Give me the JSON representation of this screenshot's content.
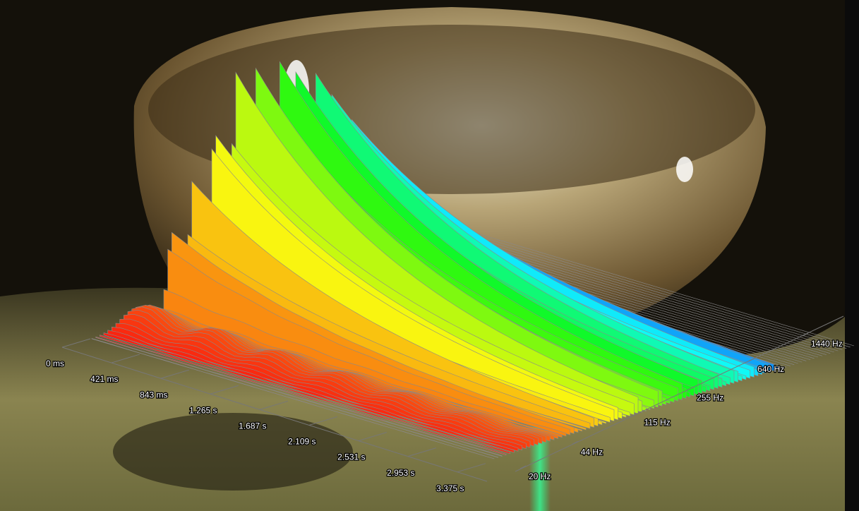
{
  "chart_data": {
    "type": "surface",
    "xticks": [
      {
        "value": 0,
        "label": "0 ms"
      },
      {
        "value": 0.421,
        "label": "421 ms"
      },
      {
        "value": 0.843,
        "label": "843 ms"
      },
      {
        "value": 1.265,
        "label": "1.265 s"
      },
      {
        "value": 1.687,
        "label": "1.687 s"
      },
      {
        "value": 2.109,
        "label": "2.109 s"
      },
      {
        "value": 2.531,
        "label": "2.531 s"
      },
      {
        "value": 2.953,
        "label": "2.953 s"
      },
      {
        "value": 3.375,
        "label": "3.375 s"
      }
    ],
    "xlim": [
      0,
      3.375
    ],
    "yticks": [
      {
        "value": 20,
        "label": "20 Hz"
      },
      {
        "value": 44,
        "label": "44 Hz"
      },
      {
        "value": 115,
        "label": "115 Hz"
      },
      {
        "value": 255,
        "label": "255 Hz"
      },
      {
        "value": 640,
        "label": "640 Hz"
      },
      {
        "value": 1440,
        "label": "1440 Hz"
      }
    ],
    "ylim": [
      20,
      1440
    ],
    "ylog": true
  }
}
